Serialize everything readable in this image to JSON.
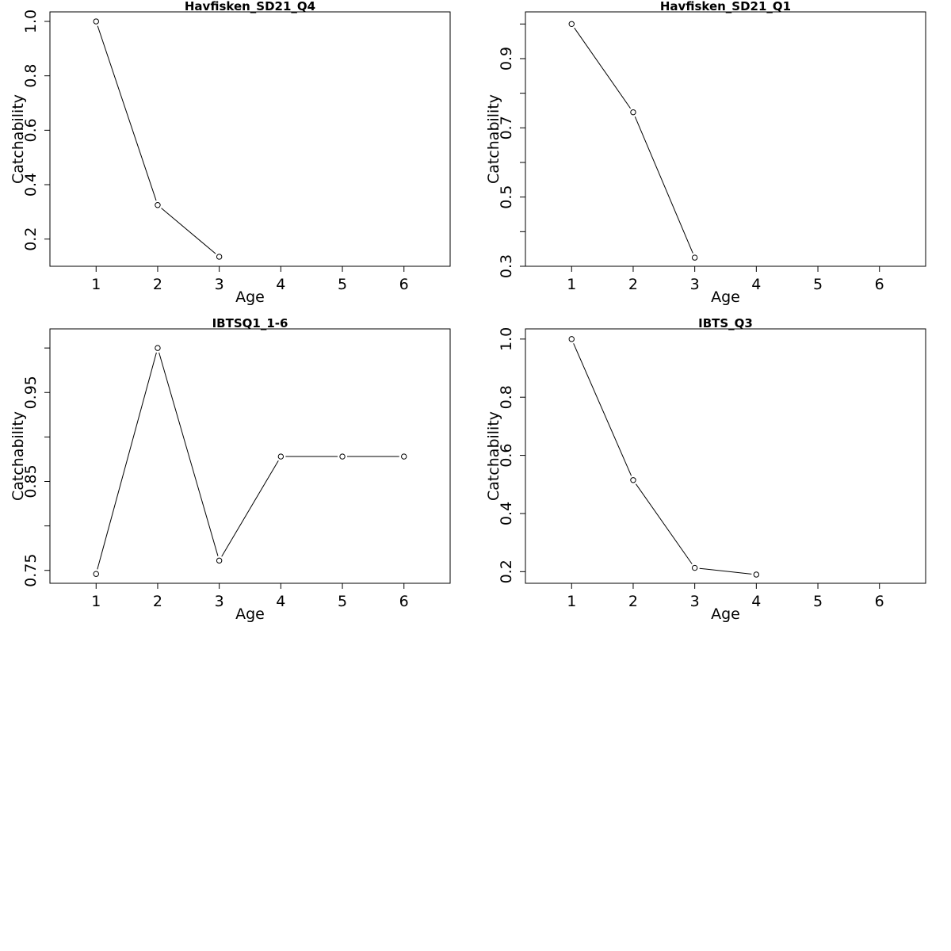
{
  "chart_data": [
    {
      "type": "line",
      "title": "Havfisken_SD21_Q4",
      "xlabel": "Age",
      "ylabel": "Catchability",
      "xlim": [
        0.25,
        6.75
      ],
      "ylim": [
        0.1,
        1.035
      ],
      "x_ticks": [
        1,
        2,
        3,
        4,
        5,
        6
      ],
      "y_ticks": [
        0.2,
        0.4,
        0.6,
        0.8,
        1.0
      ],
      "y_tick_labels": [
        "0.2",
        "0.4",
        "0.6",
        "0.8",
        "1.0"
      ],
      "x": [
        1,
        2,
        3
      ],
      "y": [
        1.0,
        0.325,
        0.135
      ]
    },
    {
      "type": "line",
      "title": "Havfisken_SD21_Q1",
      "xlabel": "Age",
      "ylabel": "Catchability",
      "xlim": [
        0.25,
        6.75
      ],
      "ylim": [
        0.3,
        1.035
      ],
      "x_ticks": [
        1,
        2,
        3,
        4,
        5,
        6
      ],
      "y_ticks": [
        0.3,
        0.4,
        0.5,
        0.6,
        0.7,
        0.8,
        0.9,
        1.0
      ],
      "y_tick_labels": [
        "0.3",
        "",
        "0.5",
        "",
        "0.7",
        "",
        "0.9",
        ""
      ],
      "x": [
        1,
        2,
        3
      ],
      "y": [
        1.0,
        0.745,
        0.325
      ]
    },
    {
      "type": "line",
      "title": "IBTSQ1_1-6",
      "xlabel": "Age",
      "ylabel": "Catchability",
      "xlim": [
        0.25,
        6.75
      ],
      "ylim": [
        0.7355,
        1.0215
      ],
      "x_ticks": [
        1,
        2,
        3,
        4,
        5,
        6
      ],
      "y_ticks": [
        0.75,
        0.8,
        0.85,
        0.9,
        0.95,
        1.0
      ],
      "y_tick_labels": [
        "0.75",
        "",
        "0.85",
        "",
        "0.95",
        ""
      ],
      "x": [
        1,
        2,
        3,
        4,
        5,
        6
      ],
      "y": [
        0.746,
        1.0,
        0.761,
        0.878,
        0.878,
        0.878
      ]
    },
    {
      "type": "line",
      "title": "IBTS_Q3",
      "xlabel": "Age",
      "ylabel": "Catchability",
      "xlim": [
        0.25,
        6.75
      ],
      "ylim": [
        0.16,
        1.035
      ],
      "x_ticks": [
        1,
        2,
        3,
        4,
        5,
        6
      ],
      "y_ticks": [
        0.2,
        0.4,
        0.6,
        0.8,
        1.0
      ],
      "y_tick_labels": [
        "0.2",
        "0.4",
        "0.6",
        "0.8",
        "1.0"
      ],
      "x": [
        1,
        2,
        3,
        4
      ],
      "y": [
        1.0,
        0.515,
        0.213,
        0.19
      ]
    }
  ]
}
